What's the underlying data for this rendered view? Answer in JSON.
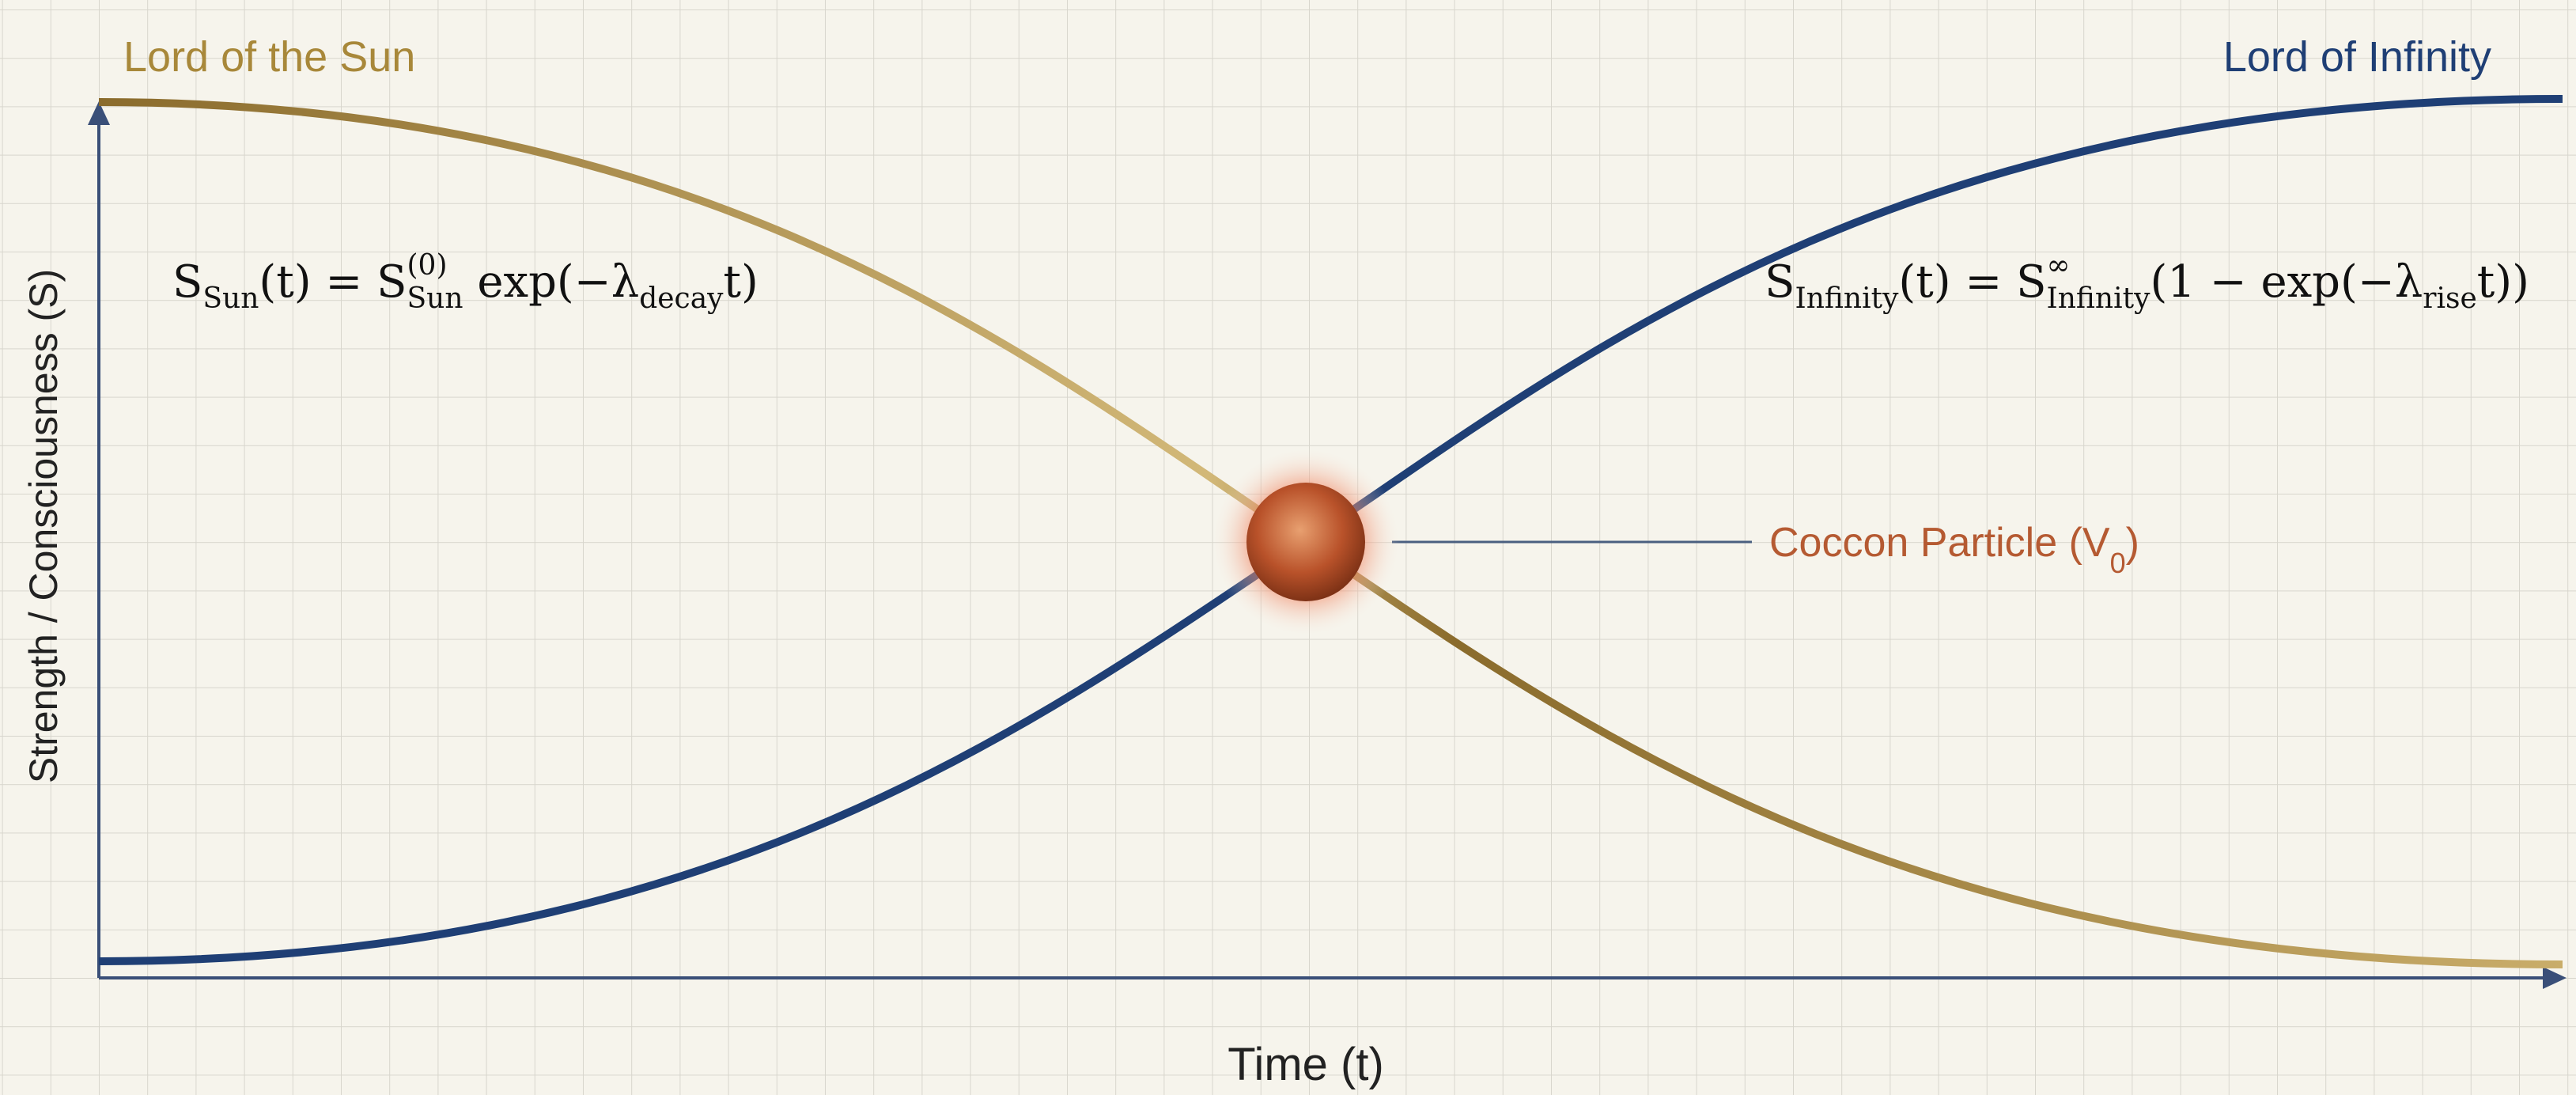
{
  "labels": {
    "sun": "Lord of the Sun",
    "infinity": "Lord of Infinity"
  },
  "axes": {
    "y_title": "Strength / Consciousness (S)",
    "x_title": "Time (t)"
  },
  "particle": {
    "label": "Coccon Particle (V",
    "subscript": "0",
    "close": ")"
  },
  "formulas": {
    "sun": [
      {
        "t": "S"
      },
      {
        "sub": "Sun"
      },
      {
        "t": "(t) = S"
      },
      {
        "sub": "Sun"
      },
      {
        "sup": "(0)"
      },
      {
        "t": " exp(−λ"
      },
      {
        "sub": "decay"
      },
      {
        "t": "t)"
      }
    ],
    "infinity": [
      {
        "t": "S"
      },
      {
        "sub": "Infinity"
      },
      {
        "t": "(t) = S"
      },
      {
        "sub": "Infinity"
      },
      {
        "sup": "∞"
      },
      {
        "t": "(1 − exp(−λ"
      },
      {
        "sub": "rise"
      },
      {
        "t": "t))"
      }
    ]
  }
}
